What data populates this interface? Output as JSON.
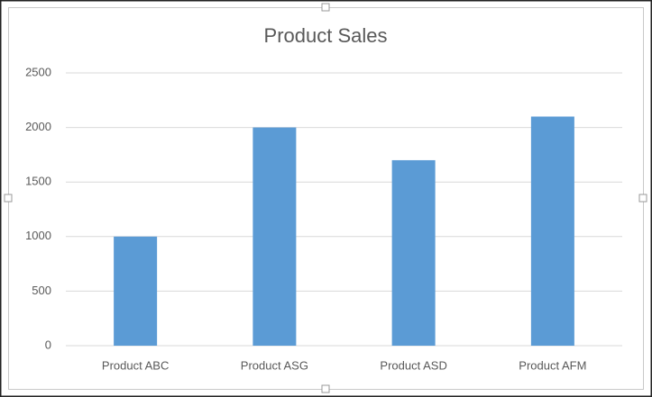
{
  "chart_data": {
    "type": "bar",
    "title": "Product Sales",
    "categories": [
      "Product ABC",
      "Product ASG",
      "Product ASD",
      "Product AFM"
    ],
    "values": [
      1000,
      2000,
      1700,
      2100
    ],
    "color": "#5b9bd5",
    "ylim": [
      0,
      2500
    ],
    "yticks": [
      0,
      500,
      1000,
      1500,
      2000,
      2500
    ],
    "grid": true
  }
}
